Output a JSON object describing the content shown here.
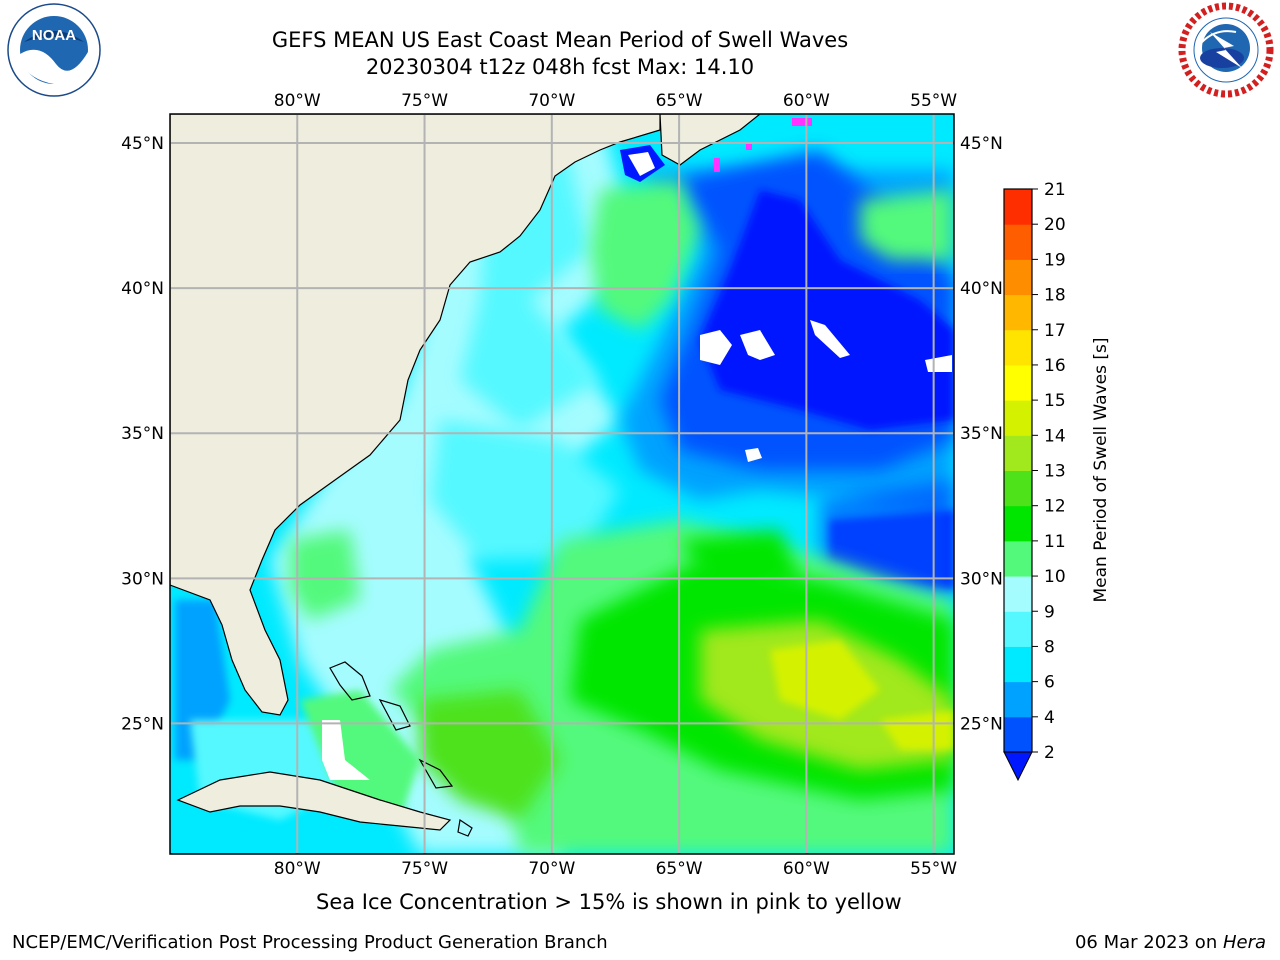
{
  "title": {
    "line1": "GEFS MEAN US East Coast Mean Period of Swell Waves",
    "line2": "20230304 t12z 048h fcst   Max: 14.10"
  },
  "logos": {
    "left": {
      "name": "noaa-logo",
      "text": "NOAA",
      "ring_text": "NATIONAL OCEANIC AND ATMOSPHERIC ADMINISTRATION • U.S. DEPARTMENT OF COMMERCE"
    },
    "right": {
      "name": "nws-logo",
      "ring_text": "NATIONAL WEATHER SERVICE"
    }
  },
  "map": {
    "lon_range": [
      -85,
      -54.2
    ],
    "lat_range": [
      20.5,
      46
    ],
    "lon_ticks": [
      -80,
      -75,
      -70,
      -65,
      -60,
      -55
    ],
    "lat_ticks": [
      25,
      30,
      35,
      40,
      45
    ],
    "lon_labels": [
      "80°W",
      "75°W",
      "70°W",
      "65°W",
      "60°W",
      "55°W"
    ],
    "lat_labels": [
      "25°N",
      "30°N",
      "35°N",
      "40°N",
      "45°N"
    ],
    "land_color": "#eeedde",
    "gridlines": true
  },
  "colorbar": {
    "label": "Mean Period of Swell Waves [s]",
    "levels": [
      2,
      4,
      6,
      8,
      9,
      10,
      11,
      12,
      13,
      14,
      15,
      16,
      17,
      18,
      19,
      20,
      21
    ],
    "colors": [
      "#0052ff",
      "#00a2ff",
      "#00eaff",
      "#55f8ff",
      "#a5fcff",
      "#52f97b",
      "#00e600",
      "#4ee21a",
      "#a1e81c",
      "#d4f200",
      "#ffff00",
      "#ffe400",
      "#ffb700",
      "#ff8d00",
      "#ff5e00",
      "#ff2e00",
      "#ff0000"
    ],
    "extend_color": "#0018ff"
  },
  "note": "Sea Ice Concentration > 15% is shown in pink to yellow",
  "footer": {
    "left": "NCEP/EMC/Verification Post Processing Product Generation Branch",
    "right_prefix": "06 Mar 2023 on ",
    "right_host": "Hera"
  }
}
